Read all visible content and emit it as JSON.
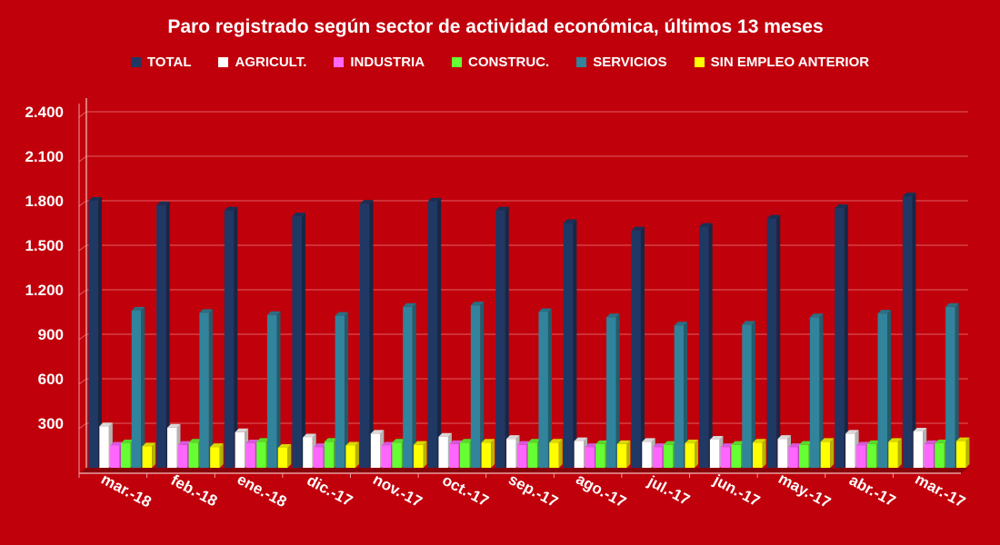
{
  "chart_data": {
    "type": "bar",
    "title": "Paro registrado según sector de actividad económica, últimos 13 meses",
    "categories": [
      "mar.-18",
      "feb.-18",
      "ene.-18",
      "dic.-17",
      "nov.-17",
      "oct.-17",
      "sep.-17",
      "ago.-17",
      "jul.-17",
      "jun.-17",
      "may.-17",
      "abr.-17",
      "mar.-17"
    ],
    "series": [
      {
        "name": "TOTAL",
        "color": "#1f3864",
        "values": [
          1800,
          1770,
          1735,
          1695,
          1780,
          1795,
          1735,
          1650,
          1600,
          1625,
          1680,
          1750,
          1830
        ]
      },
      {
        "name": "AGRICULT.",
        "color": "#ffffff",
        "values": [
          280,
          270,
          240,
          205,
          230,
          210,
          195,
          180,
          175,
          190,
          195,
          230,
          245
        ]
      },
      {
        "name": "INDUSTRIA",
        "color": "#ff66ff",
        "values": [
          150,
          155,
          165,
          140,
          150,
          160,
          155,
          140,
          140,
          140,
          140,
          150,
          160
        ]
      },
      {
        "name": "CONSTRUC.",
        "color": "#66ff33",
        "values": [
          165,
          170,
          175,
          175,
          170,
          170,
          170,
          160,
          155,
          155,
          155,
          160,
          165
        ]
      },
      {
        "name": "SERVICIOS",
        "color": "#31849b",
        "values": [
          1060,
          1045,
          1030,
          1025,
          1085,
          1095,
          1050,
          1015,
          960,
          965,
          1015,
          1040,
          1085
        ]
      },
      {
        "name": "SIN EMPLEO ANTERIOR",
        "color": "#ffff00",
        "values": [
          145,
          140,
          135,
          150,
          155,
          170,
          170,
          160,
          165,
          170,
          175,
          175,
          180
        ]
      }
    ],
    "y_ticks": [
      "300",
      "600",
      "900",
      "1.200",
      "1.500",
      "1.800",
      "2.100",
      "2.400"
    ],
    "ylim": [
      0,
      2400
    ],
    "grid": true,
    "legend_position": "top"
  }
}
